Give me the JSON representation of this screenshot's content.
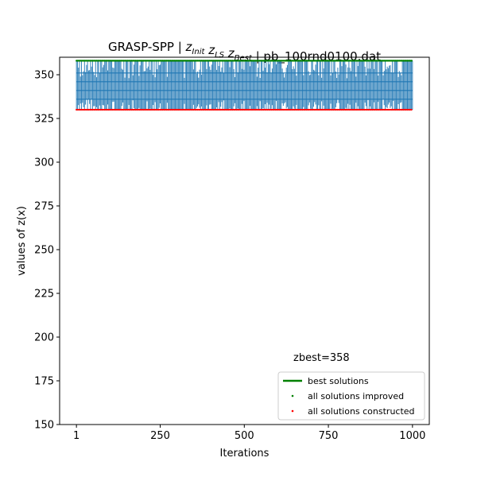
{
  "chart_data": {
    "type": "line",
    "title_prefix": "GRASP-SPP | ",
    "title_terms": [
      {
        "base": "z",
        "sub": "Init"
      },
      {
        "base": "z",
        "sub": "LS"
      },
      {
        "base": "z",
        "sub": "Best"
      }
    ],
    "title_suffix": " | pb_100rnd0100.dat",
    "xlabel": "Iterations",
    "ylabel": "values of z(x)",
    "xlim": [
      -49,
      1050
    ],
    "ylim": [
      150,
      360
    ],
    "xticks": [
      1,
      250,
      500,
      750,
      1000
    ],
    "xtick_labels": [
      "1",
      "250",
      "500",
      "750",
      "1000"
    ],
    "yticks": [
      150,
      175,
      200,
      225,
      250,
      275,
      300,
      325,
      350
    ],
    "ytick_labels": [
      "150",
      "175",
      "200",
      "225",
      "250",
      "275",
      "300",
      "325",
      "350"
    ],
    "grid": false,
    "legend_position": "lower right",
    "annotation": "zbest=358",
    "iterations": [
      1,
      1000
    ],
    "series": [
      {
        "name": "best solutions",
        "kind": "line",
        "color": "#008000",
        "x": [
          1,
          1000
        ],
        "y": [
          358,
          358
        ]
      },
      {
        "name": "all solutions improved",
        "kind": "scatter",
        "color": "#008000",
        "y_values": [
          358
        ]
      },
      {
        "name": "all solutions constructed",
        "kind": "scatter",
        "color": "#ff0000",
        "y_values": [
          330
        ]
      },
      {
        "name": "",
        "kind": "vertical_bars",
        "color": "#1f77b4",
        "y_min": 330,
        "y_max": 358
      }
    ],
    "blue_levels": [
      351,
      346,
      341,
      336
    ]
  }
}
